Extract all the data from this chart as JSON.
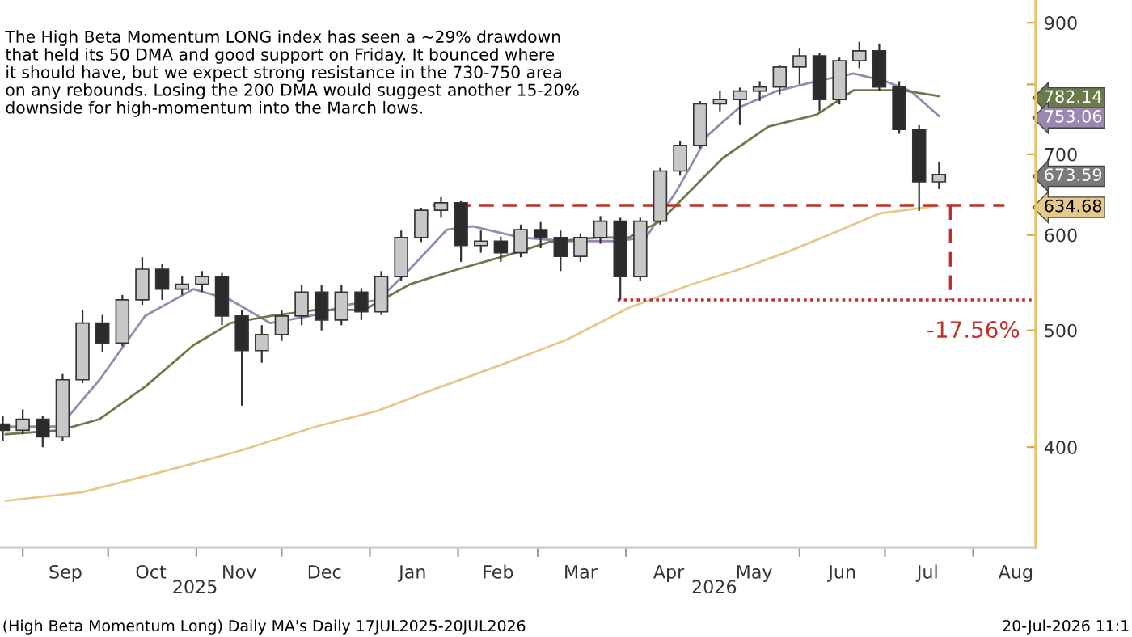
{
  "chart_data": {
    "type": "candlestick",
    "x": [
      "2025-08-25",
      "2025-09-01",
      "2025-09-08",
      "2025-09-15",
      "2025-09-22",
      "2025-09-29",
      "2025-10-06",
      "2025-10-13",
      "2025-10-20",
      "2025-10-27",
      "2025-11-03",
      "2025-11-10",
      "2025-11-17",
      "2025-11-24",
      "2025-12-01",
      "2025-12-08",
      "2025-12-15",
      "2025-12-22",
      "2025-12-29",
      "2026-01-05",
      "2026-01-12",
      "2026-01-19",
      "2026-01-26",
      "2026-02-02",
      "2026-02-09",
      "2026-02-16",
      "2026-02-23",
      "2026-03-02",
      "2026-03-09",
      "2026-03-16",
      "2026-03-23",
      "2026-03-30",
      "2026-04-06",
      "2026-04-13",
      "2026-04-20",
      "2026-04-27",
      "2026-05-04",
      "2026-05-11",
      "2026-05-18",
      "2026-05-25",
      "2026-06-01",
      "2026-06-08",
      "2026-06-15",
      "2026-06-22",
      "2026-06-29",
      "2026-07-06",
      "2026-07-13",
      "2026-07-20"
    ],
    "ohlc": [
      [
        418,
        425,
        405,
        413
      ],
      [
        413,
        430,
        410,
        422
      ],
      [
        422,
        425,
        400,
        408
      ],
      [
        408,
        460,
        405,
        455
      ],
      [
        455,
        520,
        452,
        507
      ],
      [
        507,
        515,
        480,
        488
      ],
      [
        488,
        535,
        485,
        530
      ],
      [
        530,
        575,
        525,
        562
      ],
      [
        562,
        568,
        530,
        541
      ],
      [
        541,
        555,
        535,
        546
      ],
      [
        546,
        560,
        538,
        554
      ],
      [
        554,
        558,
        505,
        514
      ],
      [
        514,
        520,
        433,
        481
      ],
      [
        481,
        505,
        470,
        496
      ],
      [
        496,
        520,
        490,
        514
      ],
      [
        514,
        545,
        505,
        538
      ],
      [
        538,
        545,
        500,
        510
      ],
      [
        510,
        545,
        505,
        538
      ],
      [
        538,
        542,
        510,
        518
      ],
      [
        518,
        560,
        515,
        554
      ],
      [
        554,
        605,
        550,
        597
      ],
      [
        597,
        632,
        592,
        629
      ],
      [
        629,
        645,
        620,
        638
      ],
      [
        638,
        640,
        570,
        588
      ],
      [
        588,
        605,
        580,
        593
      ],
      [
        593,
        598,
        570,
        580
      ],
      [
        580,
        612,
        575,
        606
      ],
      [
        606,
        615,
        585,
        597
      ],
      [
        597,
        605,
        560,
        576
      ],
      [
        576,
        602,
        570,
        597
      ],
      [
        597,
        622,
        590,
        616
      ],
      [
        616,
        620,
        530,
        554
      ],
      [
        554,
        620,
        550,
        616
      ],
      [
        616,
        682,
        612,
        678
      ],
      [
        678,
        718,
        672,
        712
      ],
      [
        712,
        775,
        708,
        771
      ],
      [
        771,
        790,
        760,
        777
      ],
      [
        777,
        795,
        740,
        790
      ],
      [
        790,
        805,
        775,
        796
      ],
      [
        796,
        830,
        785,
        827
      ],
      [
        827,
        858,
        800,
        845
      ],
      [
        845,
        850,
        760,
        777
      ],
      [
        777,
        842,
        770,
        837
      ],
      [
        837,
        868,
        825,
        853
      ],
      [
        853,
        865,
        790,
        796
      ],
      [
        796,
        805,
        728,
        734
      ],
      [
        734,
        740,
        628,
        664
      ],
      [
        664,
        690,
        655,
        673.6
      ]
    ],
    "colors": [
      "#2b2b2b",
      "#c8c8c8",
      "#2b2b2b",
      "#c8c8c8",
      "#c8c8c8",
      "#2b2b2b",
      "#c8c8c8",
      "#c8c8c8",
      "#2b2b2b",
      "#c8c8c8",
      "#c8c8c8",
      "#2b2b2b",
      "#2b2b2b",
      "#c8c8c8",
      "#c8c8c8",
      "#c8c8c8",
      "#2b2b2b",
      "#c8c8c8",
      "#2b2b2b",
      "#c8c8c8",
      "#c8c8c8",
      "#c8c8c8",
      "#c8c8c8",
      "#2b2b2b",
      "#c8c8c8",
      "#2b2b2b",
      "#c8c8c8",
      "#2b2b2b",
      "#2b2b2b",
      "#c8c8c8",
      "#c8c8c8",
      "#2b2b2b",
      "#c8c8c8",
      "#c8c8c8",
      "#c8c8c8",
      "#c8c8c8",
      "#c8c8c8",
      "#c8c8c8",
      "#c8c8c8",
      "#c8c8c8",
      "#c8c8c8",
      "#2b2b2b",
      "#c8c8c8",
      "#c8c8c8",
      "#2b2b2b",
      "#2b2b2b",
      "#2b2b2b",
      "#c8c8c8"
    ],
    "series": [
      {
        "type": "line",
        "color": "#9a88b0",
        "x": [
          "2025-08-26",
          "2025-09-14",
          "2025-09-28",
          "2025-10-14",
          "2025-10-31",
          "2025-11-13",
          "2025-11-27",
          "2025-12-11",
          "2025-12-24",
          "2026-01-04",
          "2026-01-15",
          "2026-01-28",
          "2026-02-06",
          "2026-02-23",
          "2026-03-11",
          "2026-03-28",
          "2026-04-08",
          "2026-04-19",
          "2026-04-30",
          "2026-05-11",
          "2026-05-24",
          "2026-06-07",
          "2026-06-20",
          "2026-07-01",
          "2026-07-10",
          "2026-07-20"
        ],
        "values": [
          416,
          416,
          455,
          514,
          541,
          530,
          507,
          514,
          525,
          530,
          562,
          606,
          610,
          597,
          593,
          593,
          597,
          654,
          727,
          766,
          790,
          805,
          817,
          805,
          790,
          753.06
        ]
      },
      {
        "type": "line",
        "color": "#6b7a4a",
        "x": [
          "2025-08-26",
          "2025-09-14",
          "2025-09-28",
          "2025-10-14",
          "2025-10-31",
          "2025-11-13",
          "2025-11-27",
          "2025-12-13",
          "2025-12-30",
          "2026-01-15",
          "2026-02-01",
          "2026-02-17",
          "2026-03-05",
          "2026-03-22",
          "2026-04-02",
          "2026-04-13",
          "2026-04-24",
          "2026-05-05",
          "2026-05-21",
          "2026-06-07",
          "2026-06-20",
          "2026-06-29",
          "2026-07-07",
          "2026-07-20"
        ],
        "values": [
          410,
          413,
          422,
          449,
          486,
          507,
          514,
          520,
          520,
          546,
          562,
          576,
          592,
          597,
          597,
          616,
          654,
          695,
          738,
          755,
          791,
          791,
          791,
          782.14
        ]
      },
      {
        "type": "line",
        "color": "#e6c88a",
        "x": [
          "2025-08-26",
          "2025-09-22",
          "2025-10-20",
          "2025-11-16",
          "2025-12-13",
          "2026-01-04",
          "2026-01-26",
          "2026-02-17",
          "2026-03-11",
          "2026-04-02",
          "2026-04-24",
          "2026-05-11",
          "2026-05-27",
          "2026-06-12",
          "2026-06-29",
          "2026-07-20"
        ],
        "values": [
          361,
          367,
          381.6,
          397,
          416,
          429,
          449,
          469,
          491,
          522,
          546,
          562,
          580,
          601,
          625,
          634.68
        ]
      },
      {
        "type": "line",
        "color": "#c0302a",
        "line_style": "dashed",
        "x": [
          "2026-01-23",
          "2026-08-12"
        ],
        "values": [
          635,
          635
        ]
      },
      {
        "type": "line",
        "color": "#c0302a",
        "line_style": "dashed",
        "x": [
          "2026-07-24",
          "2026-07-24"
        ],
        "values": [
          635,
          530
        ]
      },
      {
        "type": "line",
        "color": "#c0302a",
        "line_style": "dotted",
        "x": [
          "2026-03-29",
          "2026-08-23"
        ],
        "values": [
          530,
          530
        ]
      }
    ],
    "log": true,
    "xlim": [
      "2025-08-24",
      "2026-08-23"
    ],
    "xticks": [
      {
        "value": "2025-09-01",
        "label": null
      },
      {
        "value": "2025-09-16",
        "label": "Sep"
      },
      {
        "value": "2025-10-01",
        "label": null
      },
      {
        "value": "2025-10-16",
        "label": "Oct"
      },
      {
        "value": "2025-11-01",
        "label": null
      },
      {
        "value": "2025-11-16",
        "label": "Nov"
      },
      {
        "value": "2025-12-01",
        "label": null
      },
      {
        "value": "2025-12-16",
        "label": "Dec"
      },
      {
        "value": "2026-01-01",
        "label": null
      },
      {
        "value": "2026-01-16",
        "label": "Jan"
      },
      {
        "value": "2026-02-01",
        "label": null
      },
      {
        "value": "2026-02-15",
        "label": "Feb"
      },
      {
        "value": "2026-03-01",
        "label": null
      },
      {
        "value": "2026-03-16",
        "label": "Mar"
      },
      {
        "value": "2026-04-01",
        "label": null
      },
      {
        "value": "2026-04-16",
        "label": "Apr"
      },
      {
        "value": "2026-05-16",
        "label": "May"
      },
      {
        "value": "2026-06-01",
        "label": null
      },
      {
        "value": "2026-06-16",
        "label": "Jun"
      },
      {
        "value": "2026-07-01",
        "label": null
      },
      {
        "value": "2026-07-16",
        "label": "Jul"
      },
      {
        "value": "2026-08-01",
        "label": null
      },
      {
        "value": "2026-08-16",
        "label": "Aug"
      }
    ],
    "ylim": [
      330,
      940
    ],
    "yticks": [
      400,
      500,
      600,
      700,
      {
        "value": 800,
        "label": null
      },
      900,
      {
        "value": 782.14,
        "label": "782.14"
      },
      {
        "value": 753.06,
        "label": "753.06"
      },
      {
        "value": 673.59,
        "label": "673.59"
      },
      {
        "value": 634.68,
        "label": "634.68"
      }
    ],
    "annotations": [
      "The High Beta Momentum LONG index has seen a ~29% drawdown\nthat held its 50 DMA and good support on Friday. It bounced where\nit should have, but we expect strong resistance in the 730-750 area\non any rebounds. Losing the 200 DMA would suggest another 15-20%\ndownside for high-momentum into the March lows.",
      "-17.56%",
      "(High Beta Momentum Long) Daily MA's Daily 17JUL2025-20JUL2026",
      "20-Jul-2026 11:1",
      "2025",
      "2026"
    ]
  }
}
